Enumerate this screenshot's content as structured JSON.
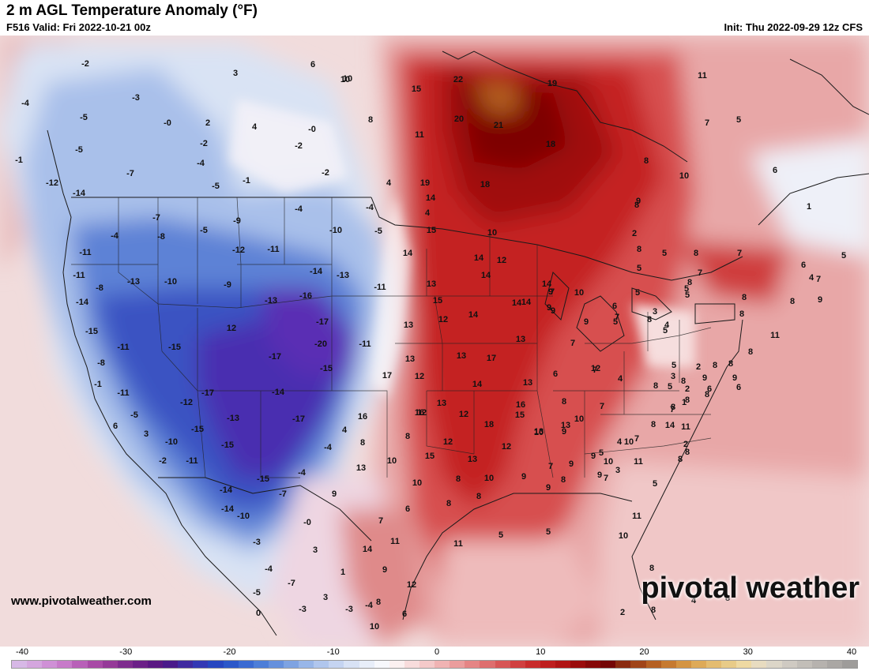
{
  "header": {
    "title": "2 m AGL Temperature Anomaly (°F)",
    "valid": "F516 Valid: Fri 2022-10-21 00z",
    "init": "Init: Thu 2022-09-29 12z CFS"
  },
  "footer": {
    "website": "www.pivotalweather.com",
    "brand": "pivotal weather"
  },
  "colorbar": {
    "min": -40,
    "max": 40,
    "ticks": [
      "-40",
      "-30",
      "-20",
      "-10",
      "0",
      "10",
      "20",
      "30",
      "40"
    ],
    "colors": [
      "#d7b8e6",
      "#d4a6de",
      "#cf90d6",
      "#c77ac9",
      "#b860b8",
      "#a84aa6",
      "#953a98",
      "#7e2c8e",
      "#6b2087",
      "#5a1882",
      "#4a1a8a",
      "#3f2aa0",
      "#3338b4",
      "#2646c0",
      "#2b57c9",
      "#3a6ad2",
      "#4d7ed8",
      "#6590dd",
      "#7ea3e2",
      "#98b6e8",
      "#b0c6ed",
      "#c5d4f1",
      "#d8e2f5",
      "#e8eef9",
      "#f7f8fc",
      "#fbf0f0",
      "#f8dcdc",
      "#f4c9c9",
      "#f0b3b3",
      "#eb9d9d",
      "#e58585",
      "#de6e6e",
      "#d75656",
      "#d04040",
      "#c82c2c",
      "#be1e1e",
      "#b01414",
      "#9a0c0c",
      "#860808",
      "#740606",
      "#8a2a10",
      "#a04418",
      "#b56022",
      "#c67a30",
      "#d49442",
      "#deaa58",
      "#e4bc70",
      "#e8cb88",
      "#eed9a2",
      "#e8dcc0",
      "#dcd6c8",
      "#cfcac2",
      "#c2beb8",
      "#b6b2ae",
      "#aaa7a4",
      "#9e9c9a"
    ]
  },
  "anomalies": [
    {
      "text": "-2"
    },
    {
      "text": "-4"
    },
    {
      "text": "-5"
    },
    {
      "text": "-3"
    },
    {
      "text": "3"
    },
    {
      "text": "6"
    },
    {
      "text": "10"
    },
    {
      "text": "-0"
    },
    {
      "text": "2"
    },
    {
      "text": "4"
    },
    {
      "text": "-5"
    },
    {
      "text": "-2"
    },
    {
      "text": "-0"
    },
    {
      "text": "-2"
    },
    {
      "text": "-4"
    },
    {
      "text": "-7"
    },
    {
      "text": "-1"
    },
    {
      "text": "-5"
    },
    {
      "text": "-2"
    },
    {
      "text": "-1"
    },
    {
      "text": "4"
    },
    {
      "text": "8"
    },
    {
      "text": "15"
    },
    {
      "text": "22"
    },
    {
      "text": "19"
    },
    {
      "text": "20"
    },
    {
      "text": "21"
    },
    {
      "text": "18"
    },
    {
      "text": "11"
    },
    {
      "text": "19"
    },
    {
      "text": "18"
    },
    {
      "text": "10"
    },
    {
      "text": "11"
    },
    {
      "text": "7"
    },
    {
      "text": "5"
    },
    {
      "text": "8"
    },
    {
      "text": "10"
    },
    {
      "text": "8"
    },
    {
      "text": "6"
    },
    {
      "text": "1"
    },
    {
      "text": "-12"
    },
    {
      "text": "-14"
    },
    {
      "text": "-4"
    },
    {
      "text": "-7"
    },
    {
      "text": "-8"
    },
    {
      "text": "-5"
    },
    {
      "text": "-9"
    },
    {
      "text": "-4"
    },
    {
      "text": "-4"
    },
    {
      "text": "-12"
    },
    {
      "text": "-11"
    },
    {
      "text": "-10"
    },
    {
      "text": "-5"
    },
    {
      "text": "-11"
    },
    {
      "text": "-11"
    },
    {
      "text": "-8"
    },
    {
      "text": "-10"
    },
    {
      "text": "-9"
    },
    {
      "text": "-14"
    },
    {
      "text": "-13"
    },
    {
      "text": "-14"
    },
    {
      "text": "-13"
    },
    {
      "text": "-16"
    },
    {
      "text": "-11"
    },
    {
      "text": "-13"
    },
    {
      "text": "-17"
    },
    {
      "text": "-15"
    },
    {
      "text": "-11"
    },
    {
      "text": "-15"
    },
    {
      "text": "12"
    },
    {
      "text": "-17"
    },
    {
      "text": "-20"
    },
    {
      "text": "-11"
    },
    {
      "text": "-8"
    },
    {
      "text": "-15"
    },
    {
      "text": "-1"
    },
    {
      "text": "-11"
    },
    {
      "text": "-17"
    },
    {
      "text": "-14"
    },
    {
      "text": "-12"
    },
    {
      "text": "-5"
    },
    {
      "text": "-13"
    },
    {
      "text": "-17"
    },
    {
      "text": "6"
    },
    {
      "text": "3"
    },
    {
      "text": "-15"
    },
    {
      "text": "-10"
    },
    {
      "text": "-15"
    },
    {
      "text": "-4"
    },
    {
      "text": "4"
    },
    {
      "text": "-2"
    },
    {
      "text": "-11"
    },
    {
      "text": "-14"
    },
    {
      "text": "-15"
    },
    {
      "text": "-4"
    },
    {
      "text": "-14"
    },
    {
      "text": "-7"
    },
    {
      "text": "-10"
    },
    {
      "text": "-0"
    },
    {
      "text": "-3"
    },
    {
      "text": "-4"
    },
    {
      "text": "3"
    },
    {
      "text": "-5"
    },
    {
      "text": "-7"
    },
    {
      "text": "-3"
    },
    {
      "text": "3"
    },
    {
      "text": "1"
    },
    {
      "text": "-3"
    },
    {
      "text": "0"
    },
    {
      "text": "-4"
    },
    {
      "text": "4"
    },
    {
      "text": "15"
    },
    {
      "text": "14"
    },
    {
      "text": "13"
    },
    {
      "text": "15"
    },
    {
      "text": "13"
    },
    {
      "text": "12"
    },
    {
      "text": "14"
    },
    {
      "text": "13"
    },
    {
      "text": "12"
    },
    {
      "text": "13"
    },
    {
      "text": "17"
    },
    {
      "text": "14"
    },
    {
      "text": "17"
    },
    {
      "text": "12"
    },
    {
      "text": "13"
    },
    {
      "text": "16"
    },
    {
      "text": "12"
    },
    {
      "text": "18"
    },
    {
      "text": "16"
    },
    {
      "text": "8"
    },
    {
      "text": "8"
    },
    {
      "text": "12"
    },
    {
      "text": "15"
    },
    {
      "text": "13"
    },
    {
      "text": "13"
    },
    {
      "text": "10"
    },
    {
      "text": "10"
    },
    {
      "text": "8"
    },
    {
      "text": "10"
    },
    {
      "text": "9"
    },
    {
      "text": "6"
    },
    {
      "text": "8"
    },
    {
      "text": "8"
    },
    {
      "text": "7"
    },
    {
      "text": "11"
    },
    {
      "text": "14"
    },
    {
      "text": "9"
    },
    {
      "text": "12"
    },
    {
      "text": "8"
    },
    {
      "text": "6"
    },
    {
      "text": "10"
    },
    {
      "text": "10"
    },
    {
      "text": "14"
    },
    {
      "text": "14"
    },
    {
      "text": "12"
    },
    {
      "text": "14"
    },
    {
      "text": "14"
    },
    {
      "text": "14"
    },
    {
      "text": "13"
    },
    {
      "text": "13"
    },
    {
      "text": "16"
    },
    {
      "text": "15"
    },
    {
      "text": "14"
    },
    {
      "text": "9"
    },
    {
      "text": "9"
    },
    {
      "text": "7"
    },
    {
      "text": "9"
    },
    {
      "text": "10"
    },
    {
      "text": "9"
    },
    {
      "text": "6"
    },
    {
      "text": "7"
    },
    {
      "text": "12"
    },
    {
      "text": "10"
    },
    {
      "text": "7"
    },
    {
      "text": "8"
    },
    {
      "text": "13"
    },
    {
      "text": "13"
    },
    {
      "text": "12"
    },
    {
      "text": "9"
    },
    {
      "text": "7"
    },
    {
      "text": "10"
    },
    {
      "text": "9"
    },
    {
      "text": "9"
    },
    {
      "text": "11"
    },
    {
      "text": "5"
    },
    {
      "text": "5"
    },
    {
      "text": "4"
    },
    {
      "text": "7"
    },
    {
      "text": "6"
    },
    {
      "text": "5"
    },
    {
      "text": "7"
    },
    {
      "text": "5"
    },
    {
      "text": "4"
    },
    {
      "text": "5"
    },
    {
      "text": "5"
    },
    {
      "text": "5"
    },
    {
      "text": "5"
    },
    {
      "text": "8"
    },
    {
      "text": "7"
    },
    {
      "text": "6"
    },
    {
      "text": "5"
    },
    {
      "text": "4"
    },
    {
      "text": "7"
    },
    {
      "text": "9"
    },
    {
      "text": "8"
    },
    {
      "text": "8"
    },
    {
      "text": "8"
    },
    {
      "text": "7"
    },
    {
      "text": "9"
    },
    {
      "text": "2"
    },
    {
      "text": "8"
    },
    {
      "text": "5"
    },
    {
      "text": "3"
    },
    {
      "text": "8"
    },
    {
      "text": "8"
    },
    {
      "text": "8"
    },
    {
      "text": "6"
    },
    {
      "text": "9"
    },
    {
      "text": "8"
    },
    {
      "text": "5"
    },
    {
      "text": "8"
    },
    {
      "text": "8"
    },
    {
      "text": "8"
    },
    {
      "text": "7"
    },
    {
      "text": "8"
    },
    {
      "text": "8"
    },
    {
      "text": "10"
    },
    {
      "text": "11"
    },
    {
      "text": "14"
    },
    {
      "text": "11"
    },
    {
      "text": "8"
    },
    {
      "text": "8"
    },
    {
      "text": "11"
    },
    {
      "text": "8"
    },
    {
      "text": "9"
    },
    {
      "text": "6"
    },
    {
      "text": "2"
    },
    {
      "text": "4"
    },
    {
      "text": "2"
    },
    {
      "text": "2"
    },
    {
      "text": "5"
    },
    {
      "text": "5"
    },
    {
      "text": "11"
    },
    {
      "text": "10"
    },
    {
      "text": "8"
    },
    {
      "text": "8"
    },
    {
      "text": "8"
    },
    {
      "text": "4"
    },
    {
      "text": "2"
    },
    {
      "text": "5"
    },
    {
      "text": "3"
    },
    {
      "text": "1"
    },
    {
      "text": "8"
    },
    {
      "text": "9"
    },
    {
      "text": "3"
    },
    {
      "text": "8"
    },
    {
      "text": "9"
    },
    {
      "text": "7"
    },
    {
      "text": "10"
    },
    {
      "text": "9"
    },
    {
      "text": "7"
    },
    {
      "text": "5"
    }
  ]
}
